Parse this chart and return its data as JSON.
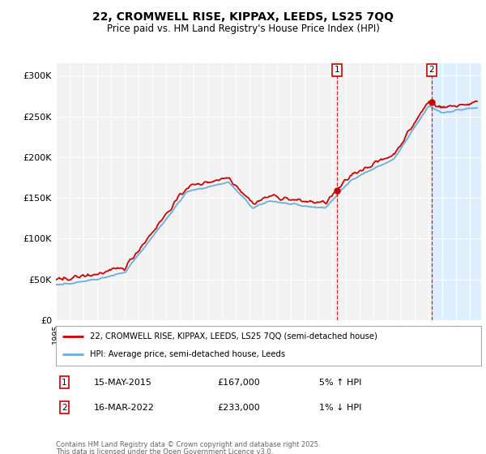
{
  "title_line1": "22, CROMWELL RISE, KIPPAX, LEEDS, LS25 7QQ",
  "title_line2": "Price paid vs. HM Land Registry's House Price Index (HPI)",
  "ylabel_ticks": [
    "£0",
    "£50K",
    "£100K",
    "£150K",
    "£200K",
    "£250K",
    "£300K"
  ],
  "ytick_values": [
    0,
    50000,
    100000,
    150000,
    200000,
    250000,
    300000
  ],
  "ylim": [
    0,
    315000
  ],
  "background_color": "#ffffff",
  "plot_bg_color": "#f2f2f2",
  "hpi_line_color": "#6baed6",
  "hpi_shade_color": "#ddeeff",
  "price_color": "#cc0000",
  "grid_color": "#ffffff",
  "transaction1_date": "15-MAY-2015",
  "transaction1_price": 167000,
  "transaction1_label": "5% ↑ HPI",
  "transaction1_year": 2015.37,
  "transaction1_price_val": 167000,
  "transaction2_date": "16-MAR-2022",
  "transaction2_price": 233000,
  "transaction2_label": "1% ↓ HPI",
  "transaction2_year": 2022.21,
  "transaction2_price_val": 233000,
  "legend_line1": "22, CROMWELL RISE, KIPPAX, LEEDS, LS25 7QQ (semi-detached house)",
  "legend_line2": "HPI: Average price, semi-detached house, Leeds",
  "footer_line1": "Contains HM Land Registry data © Crown copyright and database right 2025.",
  "footer_line2": "This data is licensed under the Open Government Licence v3.0."
}
